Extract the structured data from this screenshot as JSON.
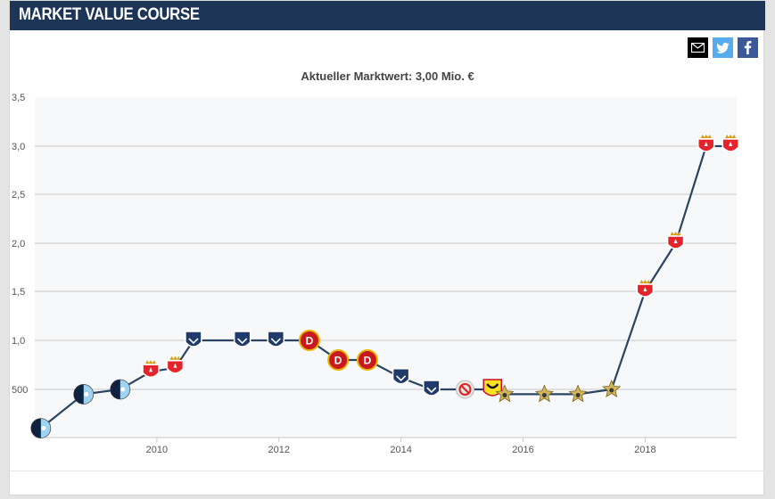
{
  "header": {
    "title": "MARKET VALUE COURSE"
  },
  "share": {
    "mail_icon": "envelope-icon",
    "twitter_icon": "twitter-bird-icon",
    "facebook_icon": "facebook-f-icon",
    "colors": {
      "mail": "#000000",
      "twitter": "#55acee",
      "facebook": "#3b5998"
    }
  },
  "chart_data": {
    "type": "line",
    "title": "Aktueller Marktwert: 3,00 Mio. €",
    "xlabel": "",
    "ylabel": "",
    "xlim": [
      2008.0,
      2019.5
    ],
    "ylim": [
      0,
      3.5
    ],
    "xticks": [
      "2010",
      "2012",
      "2014",
      "2016",
      "2018"
    ],
    "yticks": [
      "3,5",
      "3,0",
      "2,5",
      "2,0",
      "1,5",
      "1,0",
      "500"
    ],
    "grid": true,
    "line_color": "#2b4461",
    "series": [
      {
        "x": [
          2008.1,
          2008.8,
          2009.4,
          2009.9,
          2010.3,
          2010.6,
          2011.4,
          2011.95,
          2012.5,
          2012.97,
          2013.45,
          2014.0,
          2014.5,
          2015.05,
          2015.5,
          2015.7,
          2016.35,
          2016.9,
          2017.45,
          2018.0,
          2018.5,
          2019.0,
          2019.4
        ],
        "y": [
          0.1,
          0.45,
          0.5,
          0.68,
          0.72,
          1.0,
          1.0,
          1.0,
          1.0,
          0.8,
          0.8,
          0.62,
          0.5,
          0.5,
          0.5,
          0.45,
          0.45,
          0.45,
          0.5,
          1.5,
          2.0,
          3.0,
          3.0
        ],
        "markers": [
          "club-a",
          "club-a",
          "club-a",
          "club-b",
          "club-b",
          "club-c",
          "club-c",
          "club-c",
          "club-d",
          "club-d",
          "club-d",
          "club-c",
          "club-c",
          "club-e",
          "club-f",
          "club-g",
          "club-g",
          "club-g",
          "club-g",
          "club-b",
          "club-b",
          "club-b",
          "club-b"
        ]
      }
    ]
  }
}
